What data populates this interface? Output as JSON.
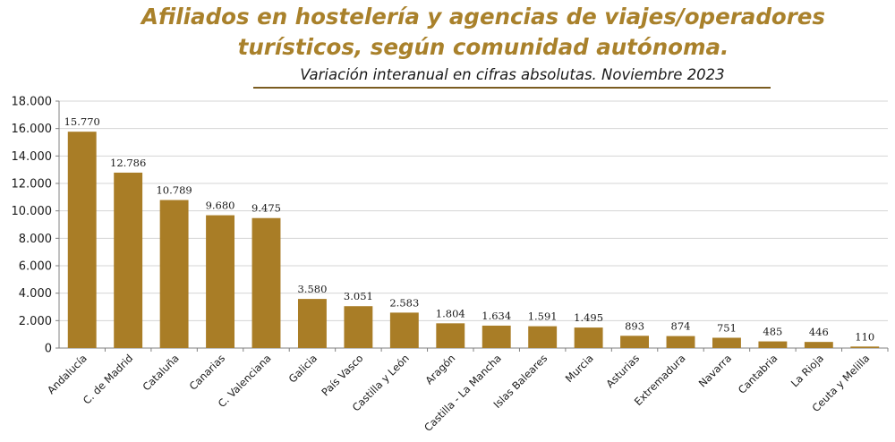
{
  "chart_data": {
    "type": "bar",
    "title": "Afiliados en hostelería y agencias de viajes/operadores turísticos, según comunidad autónoma.",
    "subtitle": "Variación interanual en cifras absolutas. Noviembre 2023",
    "categories": [
      "Andalucía",
      "C. de Madrid",
      "Cataluña",
      "Canarias",
      "C. Valenciana",
      "Galicia",
      "País Vasco",
      "Castilla y León",
      "Aragón",
      "Castilla - La Mancha",
      "Islas Baleares",
      "Murcia",
      "Asturias",
      "Extremadura",
      "Navarra",
      "Cantabria",
      "La Rioja",
      "Ceuta y Melilla"
    ],
    "values": [
      15770,
      12786,
      10789,
      9680,
      9475,
      3580,
      3051,
      2583,
      1804,
      1634,
      1591,
      1495,
      893,
      874,
      751,
      485,
      446,
      110
    ],
    "value_labels": [
      "15.770",
      "12.786",
      "10.789",
      "9.680",
      "9.475",
      "3.580",
      "3.051",
      "2.583",
      "1.804",
      "1.634",
      "1.591",
      "1.495",
      "893",
      "874",
      "751",
      "485",
      "446",
      "110"
    ],
    "yticks": [
      0,
      2000,
      4000,
      6000,
      8000,
      10000,
      12000,
      14000,
      16000,
      18000
    ],
    "ytick_labels": [
      "0",
      "2.000",
      "4.000",
      "6.000",
      "8.000",
      "10.000",
      "12.000",
      "14.000",
      "16.000",
      "18.000"
    ],
    "ylim": [
      0,
      18000
    ],
    "xlabel": "",
    "ylabel": "",
    "grid": true,
    "bar_color": "#a97d26",
    "title_color": "#a9812b"
  }
}
